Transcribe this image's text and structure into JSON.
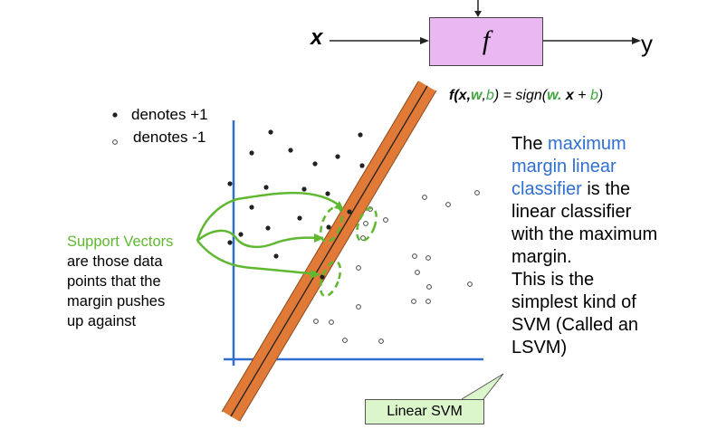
{
  "block": {
    "input_label": "x",
    "function_label": "f",
    "output_label": "y"
  },
  "formula": {
    "lhs_f": "f(",
    "lhs_x": "x",
    "comma1": ",",
    "lhs_w": "w",
    "comma2": ",",
    "lhs_b": "b",
    "eq": ") = sign(",
    "rhs_w": "w",
    "dot": ". ",
    "rhs_x": "x",
    "plus": " + ",
    "rhs_b": "b",
    "close": ")"
  },
  "legend": {
    "positive": "denotes +1",
    "negative": "denotes -1"
  },
  "support_vectors": {
    "title": "Support Vectors",
    "lines": [
      "are those data",
      "points that the",
      "margin pushes",
      "up against"
    ]
  },
  "description": {
    "part1": "The ",
    "highlight_1": "maximum",
    "highlight_2": "margin linear",
    "highlight_3": "classifier",
    "part2": " is the",
    "lines": [
      "linear classifier",
      "with the maximum",
      "margin.",
      "This is the",
      "simplest kind of",
      "SVM (Called an",
      "LSVM)"
    ]
  },
  "callout": {
    "label": "Linear SVM"
  },
  "colors": {
    "function_box": "#eab7f3",
    "margin_band": "#e07a36",
    "axes": "#2f6fd0",
    "annotation_green": "#5fb830",
    "highlight_blue": "#2f6fd0",
    "callout_fill": "#dcf6cc"
  }
}
